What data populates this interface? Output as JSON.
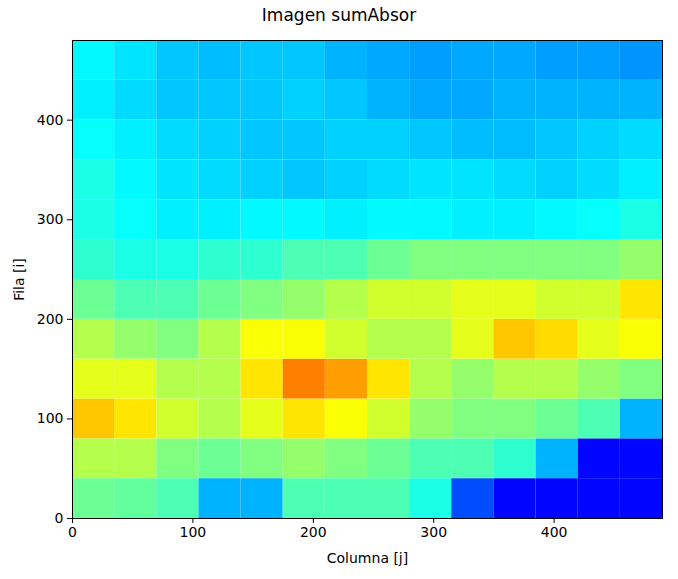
{
  "chart_data": {
    "type": "heatmap",
    "title": "Imagen sumAbsor",
    "x_label": "Columna [j]",
    "y_label": "Fila [i]",
    "xlim": [
      0,
      490
    ],
    "ylim": [
      0,
      480
    ],
    "xticks": [
      0,
      100,
      200,
      300,
      400
    ],
    "yticks": [
      0,
      100,
      200,
      300,
      400
    ],
    "clim": [
      0,
      1
    ],
    "xbins": [
      0,
      35,
      70,
      105,
      140,
      175,
      210,
      245,
      280,
      315,
      350,
      385,
      420,
      455,
      490
    ],
    "ybins": [
      0,
      40,
      80,
      120,
      160,
      200,
      240,
      280,
      320,
      360,
      400,
      440,
      480
    ],
    "cells": [
      [
        0.48,
        0.47,
        0.45,
        0.3,
        0.3,
        0.45,
        0.45,
        0.45,
        0.4,
        0.2,
        0.13,
        0.13,
        0.13,
        0.13
      ],
      [
        0.55,
        0.55,
        0.5,
        0.48,
        0.5,
        0.52,
        0.5,
        0.48,
        0.45,
        0.45,
        0.42,
        0.3,
        0.13,
        0.13
      ],
      [
        0.68,
        0.65,
        0.58,
        0.55,
        0.6,
        0.65,
        0.62,
        0.58,
        0.52,
        0.5,
        0.5,
        0.48,
        0.45,
        0.3
      ],
      [
        0.6,
        0.6,
        0.55,
        0.55,
        0.65,
        0.75,
        0.72,
        0.65,
        0.55,
        0.52,
        0.55,
        0.55,
        0.52,
        0.5
      ],
      [
        0.55,
        0.52,
        0.5,
        0.55,
        0.62,
        0.62,
        0.58,
        0.55,
        0.55,
        0.6,
        0.68,
        0.66,
        0.6,
        0.62
      ],
      [
        0.48,
        0.45,
        0.45,
        0.48,
        0.5,
        0.52,
        0.55,
        0.58,
        0.58,
        0.6,
        0.6,
        0.58,
        0.58,
        0.65
      ],
      [
        0.42,
        0.4,
        0.4,
        0.42,
        0.42,
        0.45,
        0.45,
        0.48,
        0.5,
        0.5,
        0.5,
        0.5,
        0.5,
        0.52
      ],
      [
        0.4,
        0.38,
        0.36,
        0.36,
        0.37,
        0.37,
        0.36,
        0.37,
        0.37,
        0.36,
        0.36,
        0.37,
        0.38,
        0.4
      ],
      [
        0.4,
        0.37,
        0.35,
        0.34,
        0.33,
        0.32,
        0.33,
        0.34,
        0.35,
        0.35,
        0.34,
        0.33,
        0.34,
        0.36
      ],
      [
        0.38,
        0.36,
        0.34,
        0.33,
        0.32,
        0.32,
        0.33,
        0.33,
        0.32,
        0.31,
        0.31,
        0.32,
        0.33,
        0.34
      ],
      [
        0.36,
        0.34,
        0.32,
        0.32,
        0.32,
        0.33,
        0.32,
        0.3,
        0.29,
        0.29,
        0.3,
        0.3,
        0.3,
        0.3
      ],
      [
        0.37,
        0.35,
        0.32,
        0.31,
        0.32,
        0.32,
        0.3,
        0.29,
        0.28,
        0.29,
        0.29,
        0.28,
        0.28,
        0.27
      ]
    ]
  }
}
